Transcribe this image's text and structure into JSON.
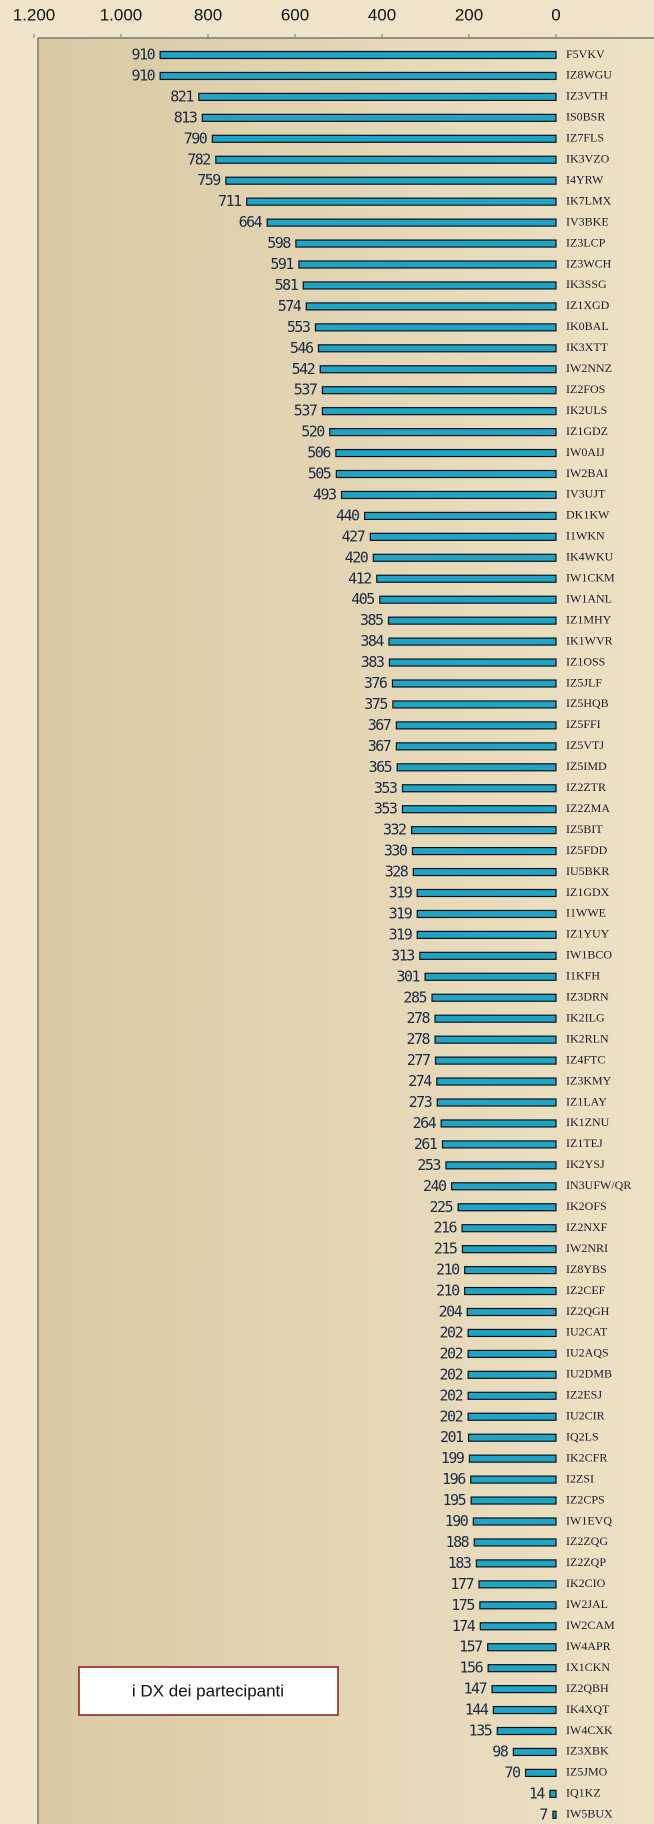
{
  "chart_data": {
    "type": "barh",
    "title": "i DX dei partecipanti",
    "categories": [
      "F5VKV",
      "IZ8WGU",
      "IZ3VTH",
      "IS0BSR",
      "IZ7FLS",
      "IK3VZO",
      "I4YRW",
      "IK7LMX",
      "IV3BKE",
      "IZ3LCP",
      "IZ3WCH",
      "IK3SSG",
      "IZ1XGD",
      "IK0BAL",
      "IK3XTT",
      "IW2NNZ",
      "IZ2FOS",
      "IK2ULS",
      "IZ1GDZ",
      "IW0AIJ",
      "IW2BAI",
      "IV3UJT",
      "DK1KW",
      "I1WKN",
      "IK4WKU",
      "IW1CKM",
      "IW1ANL",
      "IZ1MHY",
      "IK1WVR",
      "IZ1OSS",
      "IZ5JLF",
      "IZ5HQB",
      "IZ5FFI",
      "IZ5VTJ",
      "IZ5IMD",
      "IZ2ZTR",
      "IZ2ZMA",
      "IZ5BIT",
      "IZ5FDD",
      "IU5BKR",
      "IZ1GDX",
      "I1WWE",
      "IZ1YUY",
      "IW1BCO",
      "I1KFH",
      "IZ3DRN",
      "IK2ILG",
      "IK2RLN",
      "IZ4FTC",
      "IZ3KMY",
      "IZ1LAY",
      "IK1ZNU",
      "IZ1TEJ",
      "IK2YSJ",
      "IN3UFW/QR",
      "IK2OFS",
      "IZ2NXF",
      "IW2NRI",
      "IZ8YBS",
      "IZ2CEF",
      "IZ2QGH",
      "IU2CAT",
      "IU2AQS",
      "IU2DMB",
      "IZ2ESJ",
      "IU2CIR",
      "IQ2LS",
      "IK2CFR",
      "I2ZSI",
      "IZ2CPS",
      "IW1EVQ",
      "IZ2ZQG",
      "IZ2ZQP",
      "IK2CIO",
      "IW2JAL",
      "IW2CAM",
      "IW4APR",
      "IX1CKN",
      "IZ2QBH",
      "IK4XQT",
      "IW4CXK",
      "IZ3XBK",
      "IZ5JMO",
      "IQ1KZ",
      "IW5BUX"
    ],
    "values": [
      910,
      910,
      821,
      813,
      790,
      782,
      759,
      711,
      664,
      598,
      591,
      581,
      574,
      553,
      546,
      542,
      537,
      537,
      520,
      506,
      505,
      493,
      440,
      427,
      420,
      412,
      405,
      385,
      384,
      383,
      376,
      375,
      367,
      367,
      365,
      353,
      353,
      332,
      330,
      328,
      319,
      319,
      319,
      313,
      301,
      285,
      278,
      278,
      277,
      274,
      273,
      264,
      261,
      253,
      240,
      225,
      216,
      215,
      210,
      210,
      204,
      202,
      202,
      202,
      202,
      202,
      201,
      199,
      196,
      195,
      190,
      188,
      183,
      177,
      175,
      174,
      157,
      156,
      147,
      144,
      135,
      98,
      70,
      14,
      7
    ],
    "color": "#1fa3c6",
    "xlim": [
      0,
      1200
    ],
    "xticks": [
      {
        "value": 1200,
        "label": "1.200"
      },
      {
        "value": 1000,
        "label": "1.000"
      },
      800,
      600,
      400,
      200,
      0
    ],
    "reversed": true
  }
}
